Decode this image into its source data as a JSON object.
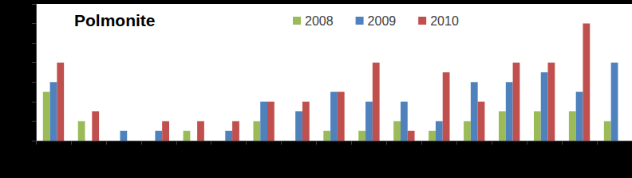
{
  "chart_data": {
    "type": "bar",
    "title": "Polmonite",
    "categories": [
      null,
      null,
      null,
      null,
      null,
      null,
      null,
      null,
      null,
      null,
      null,
      null,
      null,
      null,
      null,
      null,
      null
    ],
    "series": [
      {
        "name": "2008",
        "color": "#9bbb59",
        "values": [
          2.5,
          1,
          0,
          0,
          0.5,
          0,
          1,
          0,
          0.5,
          0.5,
          1,
          0.5,
          1,
          1.5,
          1.5,
          1.5,
          1
        ]
      },
      {
        "name": "2009",
        "color": "#4f81bd",
        "values": [
          3,
          0,
          0.5,
          0.5,
          0,
          0.5,
          2,
          1.5,
          2.5,
          2,
          2,
          1,
          3,
          3,
          3.5,
          2.5,
          4
        ]
      },
      {
        "name": "2010",
        "color": "#c0504d",
        "values": [
          4,
          1.5,
          0,
          1,
          1,
          1,
          2,
          2,
          2.5,
          4,
          0.5,
          3.5,
          2,
          4,
          4,
          6,
          null
        ]
      }
    ],
    "ylim": [
      0,
      7
    ],
    "yticks": [
      0,
      1,
      2,
      3,
      4,
      5,
      6,
      7
    ],
    "grid": false,
    "legend": "top",
    "tick_labels": false
  }
}
